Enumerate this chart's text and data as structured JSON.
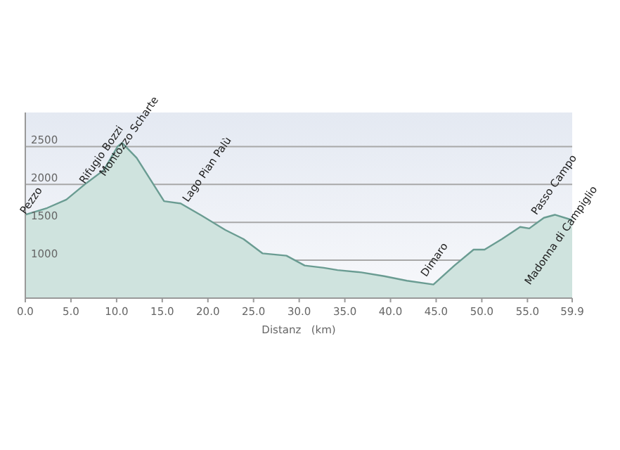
{
  "chart_data": {
    "type": "area",
    "xlabel": "Distanz   (km)",
    "x": [
      0,
      2.4,
      4.5,
      6.5,
      8.6,
      10.1,
      10.6,
      12.2,
      14.2,
      15.2,
      17,
      19.3,
      21.9,
      23.9,
      26,
      28.6,
      30.6,
      32.7,
      34.2,
      36.8,
      39.3,
      41.8,
      44.7,
      47,
      49.1,
      50.3,
      52.2,
      54.2,
      55.2,
      56.8,
      58,
      59.9
    ],
    "series": [
      {
        "color": "#6a9c92",
        "values": [
          1600,
          1690,
          1800,
          2000,
          2190,
          2500,
          2550,
          2350,
          1970,
          1780,
          1750,
          1590,
          1400,
          1280,
          1090,
          1060,
          930,
          900,
          870,
          840,
          790,
          730,
          680,
          930,
          1140,
          1140,
          1280,
          1440,
          1420,
          1560,
          1600,
          1530
        ]
      }
    ],
    "xlim": [
      0,
      59.9
    ],
    "xticks": [
      {
        "value": 0,
        "label": "0.0"
      },
      {
        "value": 5,
        "label": "5.0"
      },
      {
        "value": 10,
        "label": "10.0"
      },
      {
        "value": 15,
        "label": "15.0"
      },
      {
        "value": 20,
        "label": "20.0"
      },
      {
        "value": 25,
        "label": "25.0"
      },
      {
        "value": 30,
        "label": "30.0"
      },
      {
        "value": 35,
        "label": "35.0"
      },
      {
        "value": 40,
        "label": "40.0"
      },
      {
        "value": 45,
        "label": "45.0"
      },
      {
        "value": 50,
        "label": "50.0"
      },
      {
        "value": 55,
        "label": "55.0"
      },
      {
        "value": 59.9,
        "label": "59.9"
      }
    ],
    "ylim": [
      500,
      2950
    ],
    "yticks": [
      1000,
      1500,
      2000,
      2500
    ],
    "grid": "y",
    "annotations": [
      {
        "text": "Pezzo",
        "x": 0,
        "y": 1600
      },
      {
        "text": "Rifugio Bozzi",
        "x": 6.5,
        "y": 2000
      },
      {
        "text": "Montozzo Scharte",
        "x": 8.7,
        "y": 2100
      },
      {
        "text": "Lago Pian Palù",
        "x": 17.8,
        "y": 1760
      },
      {
        "text": "Dimaro",
        "x": 43.9,
        "y": 775
      },
      {
        "text": "Passo Campo",
        "x": 56,
        "y": 1590
      },
      {
        "text": "Madonna di Campiglio",
        "x": 59.9,
        "y": 1530
      }
    ]
  }
}
